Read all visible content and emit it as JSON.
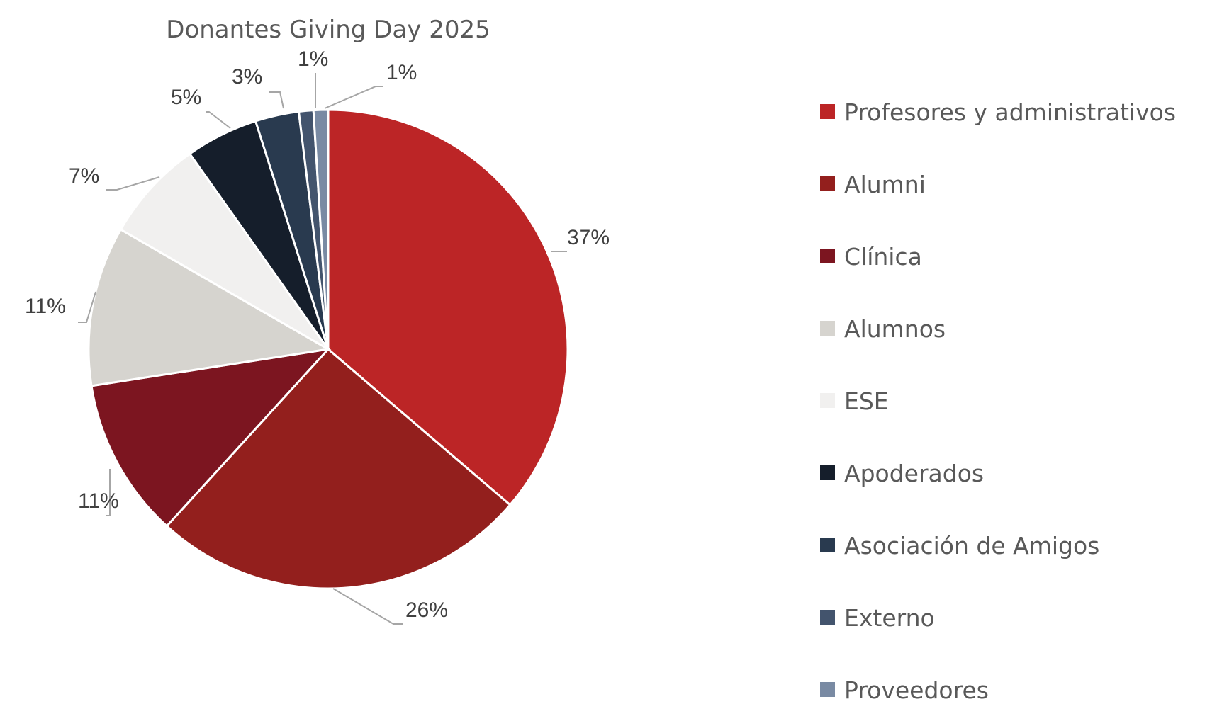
{
  "chart_data": {
    "type": "pie",
    "title": "Donantes Giving Day 2025",
    "start_angle_deg": 0,
    "direction": "clockwise",
    "legend_position": "right",
    "slices": [
      {
        "name": "Profesores y administrativos",
        "value": 37,
        "label": "37%",
        "color": "#BC2526"
      },
      {
        "name": "Alumni",
        "value": 26,
        "label": "26%",
        "color": "#931F1D"
      },
      {
        "name": "Clínica",
        "value": 11,
        "label": "11%",
        "color": "#7C1520"
      },
      {
        "name": "Alumnos",
        "value": 11,
        "label": "11%",
        "color": "#D6D4CF"
      },
      {
        "name": "ESE",
        "value": 7,
        "label": "7%",
        "color": "#F1F0EF"
      },
      {
        "name": "Apoderados",
        "value": 5,
        "label": "5%",
        "color": "#151E2B"
      },
      {
        "name": "Asociación de Amigos",
        "value": 3,
        "label": "3%",
        "color": "#293A4F"
      },
      {
        "name": "Externo",
        "value": 1,
        "label": "1%",
        "color": "#43546D"
      },
      {
        "name": "Proveedores",
        "value": 1,
        "label": "1%",
        "color": "#798AA3"
      }
    ]
  }
}
